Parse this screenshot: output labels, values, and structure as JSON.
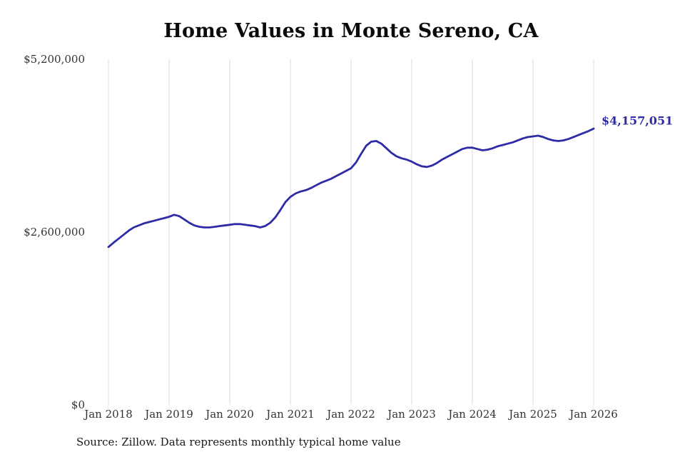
{
  "source_note": "Source: Zillow. Data represents monthly typical home value",
  "colors": {
    "line": "#2d2ba6",
    "annotation": "#2d2ba6",
    "gridline": "#d9d9d9",
    "tick_text": "#333333",
    "title_text": "#0a0a0a"
  },
  "chart_data": {
    "type": "line",
    "title": "Home Values in Monte Sereno, CA",
    "series_name": "Monthly typical home value",
    "x": [
      "Jan 2018",
      "Feb 2018",
      "Mar 2018",
      "Apr 2018",
      "May 2018",
      "Jun 2018",
      "Jul 2018",
      "Aug 2018",
      "Sep 2018",
      "Oct 2018",
      "Nov 2018",
      "Dec 2018",
      "Jan 2019",
      "Feb 2019",
      "Mar 2019",
      "Apr 2019",
      "May 2019",
      "Jun 2019",
      "Jul 2019",
      "Aug 2019",
      "Sep 2019",
      "Oct 2019",
      "Nov 2019",
      "Dec 2019",
      "Jan 2020",
      "Feb 2020",
      "Mar 2020",
      "Apr 2020",
      "May 2020",
      "Jun 2020",
      "Jul 2020",
      "Aug 2020",
      "Sep 2020",
      "Oct 2020",
      "Nov 2020",
      "Dec 2020",
      "Jan 2021",
      "Feb 2021",
      "Mar 2021",
      "Apr 2021",
      "May 2021",
      "Jun 2021",
      "Jul 2021",
      "Aug 2021",
      "Sep 2021",
      "Oct 2021",
      "Nov 2021",
      "Dec 2021",
      "Jan 2022",
      "Feb 2022",
      "Mar 2022",
      "Apr 2022",
      "May 2022",
      "Jun 2022",
      "Jul 2022",
      "Aug 2022",
      "Sep 2022",
      "Oct 2022",
      "Nov 2022",
      "Dec 2022",
      "Jan 2023",
      "Feb 2023",
      "Mar 2023",
      "Apr 2023",
      "May 2023",
      "Jun 2023",
      "Jul 2023",
      "Aug 2023",
      "Sep 2023",
      "Oct 2023",
      "Nov 2023",
      "Dec 2023",
      "Jan 2024",
      "Feb 2024",
      "Mar 2024",
      "Apr 2024",
      "May 2024",
      "Jun 2024",
      "Jul 2024",
      "Aug 2024",
      "Sep 2024",
      "Oct 2024",
      "Nov 2024",
      "Dec 2024",
      "Jan 2025",
      "Feb 2025",
      "Mar 2025",
      "Apr 2025",
      "May 2025",
      "Jun 2025",
      "Jul 2025",
      "Aug 2025",
      "Sep 2025",
      "Oct 2025",
      "Nov 2025",
      "Dec 2025",
      "Jan 2026"
    ],
    "values": [
      2375000,
      2440000,
      2500000,
      2560000,
      2620000,
      2670000,
      2700000,
      2730000,
      2750000,
      2770000,
      2790000,
      2810000,
      2830000,
      2860000,
      2840000,
      2790000,
      2740000,
      2700000,
      2680000,
      2670000,
      2670000,
      2680000,
      2690000,
      2700000,
      2710000,
      2720000,
      2720000,
      2710000,
      2700000,
      2690000,
      2670000,
      2690000,
      2740000,
      2820000,
      2930000,
      3050000,
      3130000,
      3180000,
      3210000,
      3230000,
      3260000,
      3300000,
      3340000,
      3370000,
      3400000,
      3440000,
      3480000,
      3520000,
      3560000,
      3650000,
      3780000,
      3900000,
      3960000,
      3970000,
      3930000,
      3860000,
      3790000,
      3740000,
      3710000,
      3690000,
      3660000,
      3620000,
      3590000,
      3580000,
      3600000,
      3640000,
      3690000,
      3730000,
      3770000,
      3810000,
      3850000,
      3870000,
      3870000,
      3850000,
      3830000,
      3840000,
      3860000,
      3890000,
      3910000,
      3930000,
      3950000,
      3980000,
      4010000,
      4030000,
      4040000,
      4050000,
      4030000,
      4000000,
      3980000,
      3970000,
      3980000,
      4000000,
      4030000,
      4060000,
      4090000,
      4120000,
      4157051
    ],
    "x_ticks": [
      {
        "index": 0,
        "label": "Jan 2018"
      },
      {
        "index": 12,
        "label": "Jan 2019"
      },
      {
        "index": 24,
        "label": "Jan 2020"
      },
      {
        "index": 36,
        "label": "Jan 2021"
      },
      {
        "index": 48,
        "label": "Jan 2022"
      },
      {
        "index": 60,
        "label": "Jan 2023"
      },
      {
        "index": 72,
        "label": "Jan 2024"
      },
      {
        "index": 84,
        "label": "Jan 2025"
      },
      {
        "index": 96,
        "label": "Jan 2026"
      }
    ],
    "y_ticks": [
      {
        "value": 0,
        "label": "$0"
      },
      {
        "value": 2600000,
        "label": "$2,600,000"
      },
      {
        "value": 5200000,
        "label": "$5,200,000"
      }
    ],
    "ylim": [
      0,
      5200000
    ],
    "grid": "vertical-only",
    "legend": "none",
    "latest_value": 4157051,
    "latest_label": "$4,157,051"
  }
}
